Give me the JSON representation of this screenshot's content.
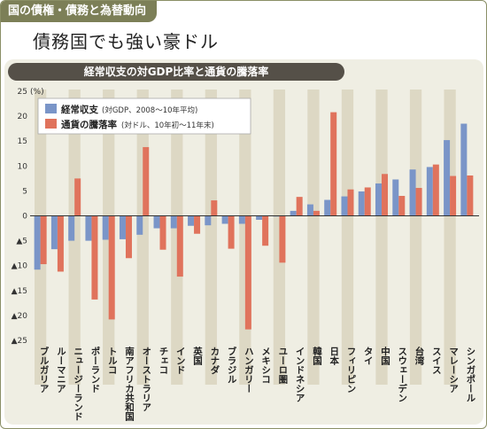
{
  "header": {
    "tag": "国の債権・債務と為替動向",
    "headline": "債務国でも強い豪ドル"
  },
  "chart_data": {
    "type": "bar",
    "title": "経常収支の対GDP比率と通貨の騰落率",
    "ylabel": "(%)",
    "ylim": [
      -25,
      25
    ],
    "yticks": [
      "25",
      "20",
      "15",
      "10",
      "5",
      "0",
      "▲5",
      "▲10",
      "▲15",
      "▲20",
      "▲25"
    ],
    "grid": false,
    "legend_position": "top-left",
    "categories": [
      "ブルガリア",
      "ルーマニア",
      "ニュージーランド",
      "ポーランド",
      "トルコ",
      "南アフリカ共和国",
      "オーストラリア",
      "チェコ",
      "インド",
      "英国",
      "カナダ",
      "ブラジル",
      "ハンガリー",
      "メキシコ",
      "ユーロ圏",
      "インドネシア",
      "韓国",
      "日本",
      "フィリピン",
      "タイ",
      "中国",
      "スウェーデン",
      "台湾",
      "スイス",
      "マレーシア",
      "シンガポール"
    ],
    "series": [
      {
        "name": "経常収支",
        "note": "(対GDP、2008〜10年平均)",
        "color": "#7a95c8",
        "values": [
          -10.8,
          -6.7,
          -5.0,
          -5.0,
          -4.8,
          -4.7,
          -3.8,
          -2.5,
          -2.5,
          -2.0,
          -1.9,
          -1.6,
          -1.6,
          -0.8,
          -0.1,
          1.0,
          2.3,
          3.2,
          3.9,
          4.9,
          6.5,
          7.3,
          9.3,
          9.8,
          15.2,
          18.5
        ]
      },
      {
        "name": "通貨の騰落率",
        "note": "(対ドル、10年初〜11年末)",
        "color": "#e0735c",
        "values": [
          -9.7,
          -11.2,
          7.5,
          -16.8,
          -20.8,
          -8.5,
          13.8,
          -6.8,
          -12.2,
          -3.6,
          3.1,
          -6.6,
          -22.8,
          -6.0,
          -9.4,
          3.8,
          1.0,
          20.8,
          5.3,
          5.7,
          8.4,
          4.0,
          5.6,
          10.3,
          8.0,
          8.1
        ]
      }
    ]
  }
}
